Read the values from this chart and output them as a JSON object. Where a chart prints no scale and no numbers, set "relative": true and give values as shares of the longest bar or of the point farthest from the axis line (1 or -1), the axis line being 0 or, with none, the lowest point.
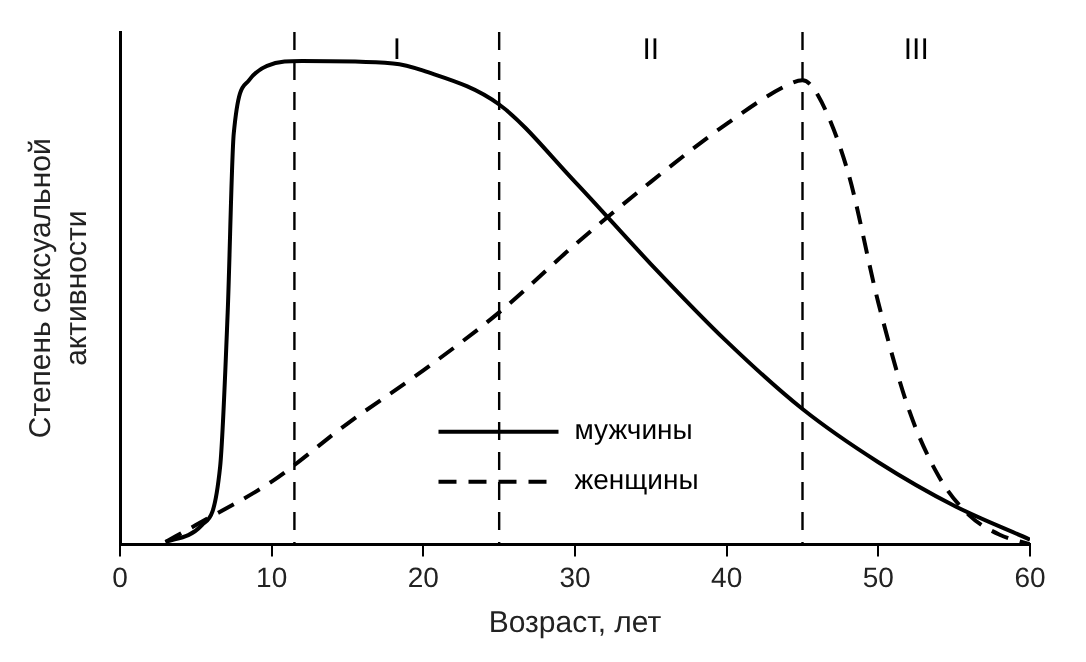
{
  "chart_data": {
    "type": "line",
    "relative": true,
    "xlabel": "Возраст, лет",
    "ylabel": "Степень сексуальной активности",
    "xlim": [
      0,
      60
    ],
    "xticks": [
      0,
      10,
      20,
      30,
      40,
      50,
      60
    ],
    "grid": false,
    "legend": "bottom",
    "annotations": [
      "I",
      "II",
      "III"
    ],
    "ref_lines": [
      {
        "axis": "x",
        "value": 11.5,
        "line_style": "dashed",
        "color": "#000000"
      },
      {
        "axis": "x",
        "value": 25,
        "line_style": "dashed",
        "color": "#000000"
      },
      {
        "axis": "x",
        "value": 45,
        "line_style": "dashed",
        "color": "#000000"
      }
    ],
    "series": [
      {
        "name": "мужчины",
        "color": "#000000",
        "line_style": "solid",
        "x": [
          3,
          5.4,
          6.6,
          7.1,
          7.5,
          8.5,
          9.7,
          12,
          18,
          20,
          25,
          30,
          35,
          40,
          45,
          50,
          55,
          60
        ],
        "values": [
          0.005,
          0.04,
          0.16,
          0.48,
          0.85,
          0.96,
          0.99,
          1,
          0.995,
          0.98,
          0.91,
          0.75,
          0.58,
          0.42,
          0.28,
          0.17,
          0.08,
          0.01
        ]
      },
      {
        "name": "женщины",
        "color": "#000000",
        "line_style": "dashed",
        "x": [
          3,
          5,
          10,
          15,
          20,
          25,
          30,
          35,
          40,
          44,
          45,
          46,
          48,
          50,
          52,
          54,
          56,
          58,
          60
        ],
        "values": [
          0.005,
          0.04,
          0.13,
          0.25,
          0.36,
          0.48,
          0.62,
          0.75,
          0.87,
          0.95,
          0.96,
          0.93,
          0.77,
          0.5,
          0.28,
          0.14,
          0.06,
          0.02,
          0
        ]
      }
    ]
  }
}
